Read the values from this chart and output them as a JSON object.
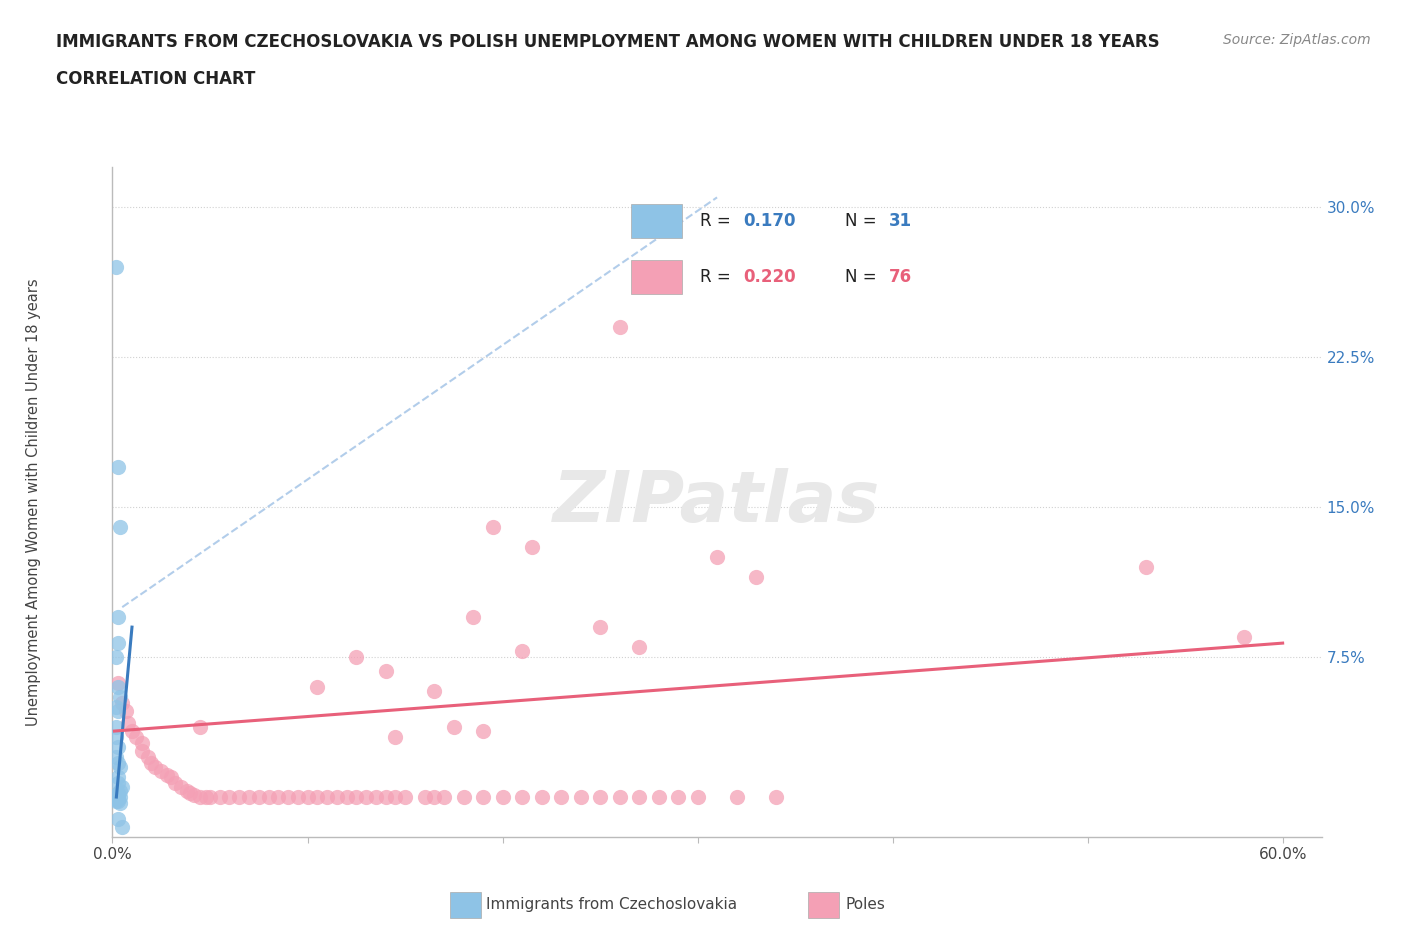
{
  "title": "IMMIGRANTS FROM CZECHOSLOVAKIA VS POLISH UNEMPLOYMENT AMONG WOMEN WITH CHILDREN UNDER 18 YEARS",
  "subtitle": "CORRELATION CHART",
  "source": "Source: ZipAtlas.com",
  "ylabel": "Unemployment Among Women with Children Under 18 years",
  "xlim": [
    0.0,
    0.62
  ],
  "ylim": [
    -0.015,
    0.32
  ],
  "xticks": [
    0.0,
    0.1,
    0.2,
    0.3,
    0.4,
    0.5,
    0.6
  ],
  "xticklabels": [
    "0.0%",
    "",
    "",
    "",
    "",
    "",
    "60.0%"
  ],
  "yticks": [
    0.075,
    0.15,
    0.225,
    0.3
  ],
  "yticklabels": [
    "7.5%",
    "15.0%",
    "22.5%",
    "30.0%"
  ],
  "blue_color": "#8ec3e6",
  "pink_color": "#f4a0b5",
  "blue_line_color": "#3a7bbf",
  "pink_line_color": "#e8607a",
  "diag_line_color": "#aac8e8",
  "blue_scatter": [
    [
      0.002,
      0.27
    ],
    [
      0.003,
      0.17
    ],
    [
      0.004,
      0.14
    ],
    [
      0.003,
      0.095
    ],
    [
      0.003,
      0.082
    ],
    [
      0.002,
      0.075
    ],
    [
      0.003,
      0.06
    ],
    [
      0.004,
      0.055
    ],
    [
      0.002,
      0.05
    ],
    [
      0.003,
      0.048
    ],
    [
      0.002,
      0.04
    ],
    [
      0.002,
      0.035
    ],
    [
      0.003,
      0.03
    ],
    [
      0.002,
      0.025
    ],
    [
      0.003,
      0.022
    ],
    [
      0.004,
      0.02
    ],
    [
      0.003,
      0.015
    ],
    [
      0.003,
      0.012
    ],
    [
      0.005,
      0.01
    ],
    [
      0.004,
      0.008
    ],
    [
      0.003,
      0.007
    ],
    [
      0.002,
      0.006
    ],
    [
      0.004,
      0.005
    ],
    [
      0.003,
      0.005
    ],
    [
      0.002,
      0.004
    ],
    [
      0.003,
      0.004
    ],
    [
      0.002,
      0.003
    ],
    [
      0.003,
      0.003
    ],
    [
      0.004,
      0.002
    ],
    [
      0.003,
      -0.006
    ],
    [
      0.005,
      -0.01
    ]
  ],
  "pink_scatter": [
    [
      0.003,
      0.062
    ],
    [
      0.005,
      0.052
    ],
    [
      0.007,
      0.048
    ],
    [
      0.008,
      0.042
    ],
    [
      0.01,
      0.038
    ],
    [
      0.012,
      0.035
    ],
    [
      0.015,
      0.032
    ],
    [
      0.015,
      0.028
    ],
    [
      0.018,
      0.025
    ],
    [
      0.02,
      0.022
    ],
    [
      0.022,
      0.02
    ],
    [
      0.025,
      0.018
    ],
    [
      0.028,
      0.016
    ],
    [
      0.03,
      0.015
    ],
    [
      0.032,
      0.012
    ],
    [
      0.035,
      0.01
    ],
    [
      0.038,
      0.008
    ],
    [
      0.04,
      0.007
    ],
    [
      0.042,
      0.006
    ],
    [
      0.045,
      0.005
    ],
    [
      0.048,
      0.005
    ],
    [
      0.05,
      0.005
    ],
    [
      0.055,
      0.005
    ],
    [
      0.06,
      0.005
    ],
    [
      0.065,
      0.005
    ],
    [
      0.07,
      0.005
    ],
    [
      0.075,
      0.005
    ],
    [
      0.08,
      0.005
    ],
    [
      0.085,
      0.005
    ],
    [
      0.09,
      0.005
    ],
    [
      0.095,
      0.005
    ],
    [
      0.1,
      0.005
    ],
    [
      0.105,
      0.005
    ],
    [
      0.11,
      0.005
    ],
    [
      0.115,
      0.005
    ],
    [
      0.12,
      0.005
    ],
    [
      0.125,
      0.005
    ],
    [
      0.13,
      0.005
    ],
    [
      0.135,
      0.005
    ],
    [
      0.14,
      0.005
    ],
    [
      0.145,
      0.005
    ],
    [
      0.15,
      0.005
    ],
    [
      0.16,
      0.005
    ],
    [
      0.165,
      0.005
    ],
    [
      0.17,
      0.005
    ],
    [
      0.18,
      0.005
    ],
    [
      0.19,
      0.005
    ],
    [
      0.2,
      0.005
    ],
    [
      0.21,
      0.005
    ],
    [
      0.22,
      0.005
    ],
    [
      0.23,
      0.005
    ],
    [
      0.24,
      0.005
    ],
    [
      0.25,
      0.005
    ],
    [
      0.26,
      0.005
    ],
    [
      0.27,
      0.005
    ],
    [
      0.28,
      0.005
    ],
    [
      0.29,
      0.005
    ],
    [
      0.3,
      0.005
    ],
    [
      0.32,
      0.005
    ],
    [
      0.34,
      0.005
    ],
    [
      0.26,
      0.24
    ],
    [
      0.195,
      0.14
    ],
    [
      0.215,
      0.13
    ],
    [
      0.31,
      0.125
    ],
    [
      0.33,
      0.115
    ],
    [
      0.185,
      0.095
    ],
    [
      0.25,
      0.09
    ],
    [
      0.27,
      0.08
    ],
    [
      0.21,
      0.078
    ],
    [
      0.125,
      0.075
    ],
    [
      0.14,
      0.068
    ],
    [
      0.105,
      0.06
    ],
    [
      0.165,
      0.058
    ],
    [
      0.045,
      0.04
    ],
    [
      0.175,
      0.04
    ],
    [
      0.19,
      0.038
    ],
    [
      0.145,
      0.035
    ],
    [
      0.53,
      0.12
    ],
    [
      0.58,
      0.085
    ]
  ],
  "blue_trendline": [
    [
      0.002,
      0.005
    ],
    [
      0.01,
      0.09
    ]
  ],
  "pink_trendline": [
    [
      0.001,
      0.038
    ],
    [
      0.6,
      0.082
    ]
  ],
  "diag_line": [
    [
      0.005,
      0.1
    ],
    [
      0.31,
      0.305
    ]
  ]
}
